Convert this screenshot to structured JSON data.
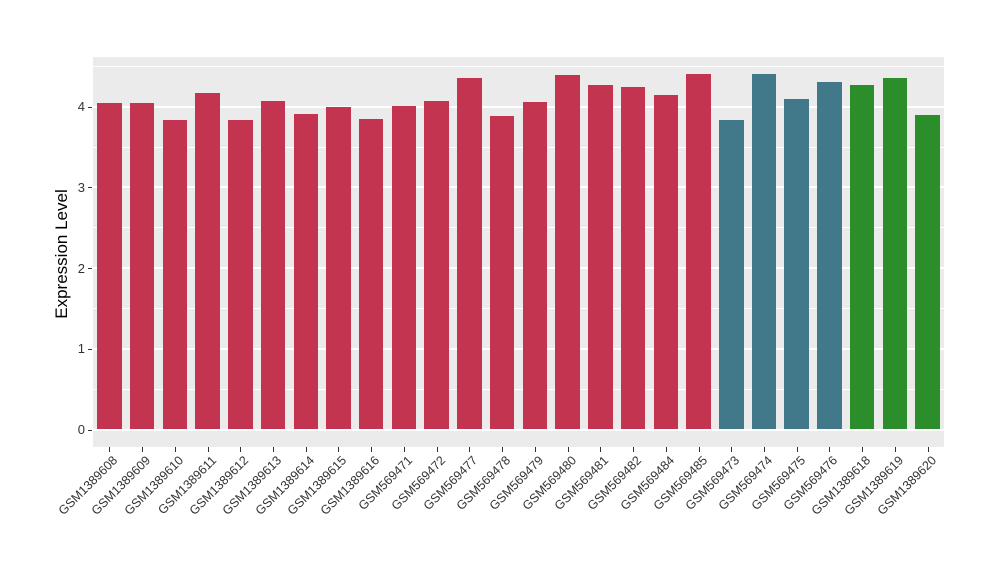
{
  "chart_data": {
    "type": "bar",
    "title": "",
    "xlabel": "",
    "ylabel": "Expression Level",
    "yticks": [
      0,
      1,
      2,
      3,
      4
    ],
    "yticks_minor": [
      0.5,
      1.5,
      2.5,
      3.5,
      4.5
    ],
    "ylim": [
      -0.22,
      4.62
    ],
    "grid": "on",
    "legend_position": "none",
    "panel_background": "#EBEBEB",
    "grid_color": "#FFFFFF",
    "axis_text_color": "#333333",
    "palette": {
      "crimson": "#C23450",
      "teal": "#41798A",
      "green": "#2B8E2B"
    },
    "categories": [
      "GSM1389608",
      "GSM1389609",
      "GSM1389610",
      "GSM1389611",
      "GSM1389612",
      "GSM1389613",
      "GSM1389614",
      "GSM1389615",
      "GSM1389616",
      "GSM569471",
      "GSM569472",
      "GSM569477",
      "GSM569478",
      "GSM569479",
      "GSM569480",
      "GSM569481",
      "GSM569482",
      "GSM569484",
      "GSM569485",
      "GSM569473",
      "GSM569474",
      "GSM569475",
      "GSM569476",
      "GSM1389618",
      "GSM1389619",
      "GSM1389620"
    ],
    "values": [
      4.05,
      4.04,
      3.83,
      4.17,
      3.84,
      4.07,
      3.91,
      4.0,
      3.85,
      4.01,
      4.07,
      4.35,
      3.89,
      4.06,
      4.39,
      4.27,
      4.24,
      4.15,
      4.41,
      3.84,
      4.4,
      4.09,
      4.31,
      4.27,
      4.36,
      3.9
    ],
    "groups": [
      "crimson",
      "crimson",
      "crimson",
      "crimson",
      "crimson",
      "crimson",
      "crimson",
      "crimson",
      "crimson",
      "crimson",
      "crimson",
      "crimson",
      "crimson",
      "crimson",
      "crimson",
      "crimson",
      "crimson",
      "crimson",
      "crimson",
      "teal",
      "teal",
      "teal",
      "teal",
      "green",
      "green",
      "green"
    ]
  }
}
